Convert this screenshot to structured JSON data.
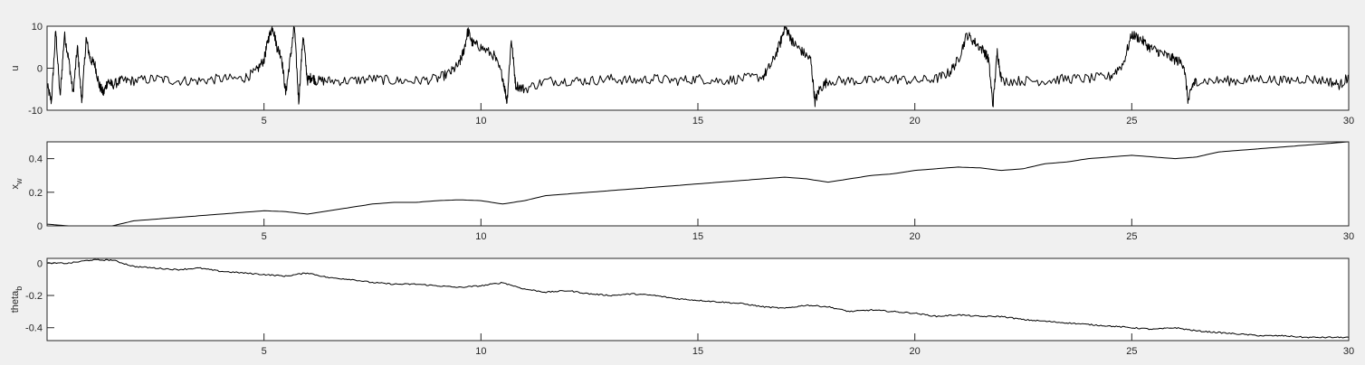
{
  "figure": {
    "background": "#f0f0f0",
    "axes_background": "#ffffff",
    "line_color": "#000000",
    "axis_color": "#262626"
  },
  "chart_data": [
    {
      "type": "line",
      "ylabel": "u",
      "ylabel_sub": "",
      "xlim": [
        0,
        30
      ],
      "ylim": [
        -10,
        10
      ],
      "xticks": [
        5,
        10,
        15,
        20,
        25,
        30
      ],
      "xtick_labels": [
        "5",
        "10",
        "15",
        "20",
        "25",
        "30"
      ],
      "yticks": [
        -10,
        0,
        10
      ],
      "ytick_labels": [
        "-10",
        "0",
        "10"
      ],
      "grid": false,
      "noise": 1.2,
      "series": [
        {
          "x": [
            0,
            0.1,
            0.2,
            0.3,
            0.4,
            0.5,
            0.6,
            0.7,
            0.8,
            0.9,
            1.0,
            1.1,
            1.2,
            1.3,
            1.4,
            1.5,
            1.7,
            2.0,
            2.5,
            3.0,
            3.5,
            4.0,
            4.5,
            4.8,
            5.0,
            5.1,
            5.2,
            5.3,
            5.4,
            5.5,
            5.6,
            5.7,
            5.8,
            5.9,
            6.0,
            6.1,
            6.2,
            6.5,
            7.0,
            7.5,
            8.0,
            8.5,
            9.0,
            9.3,
            9.5,
            9.6,
            9.7,
            9.8,
            10.0,
            10.3,
            10.5,
            10.6,
            10.7,
            10.8,
            11.0,
            11.5,
            12.0,
            12.5,
            13.0,
            13.5,
            14.0,
            14.5,
            15.0,
            15.5,
            16.0,
            16.5,
            16.7,
            16.9,
            17.0,
            17.1,
            17.2,
            17.4,
            17.6,
            17.7,
            17.8,
            18.0,
            18.5,
            19.0,
            19.5,
            20.0,
            20.5,
            20.8,
            21.0,
            21.2,
            21.4,
            21.6,
            21.7,
            21.8,
            21.9,
            22.0,
            22.5,
            23.0,
            23.5,
            24.0,
            24.5,
            24.8,
            25.0,
            25.2,
            25.4,
            25.6,
            25.8,
            26.0,
            26.2,
            26.3,
            26.4,
            26.5,
            27.0,
            27.5,
            28.0,
            28.5,
            29.0,
            29.5,
            29.8,
            30.0
          ],
          "y": [
            -4,
            -8,
            9,
            -7,
            8,
            2,
            -6,
            5,
            -8,
            7,
            2,
            1,
            -4,
            -6,
            -3,
            -4,
            -3,
            -3,
            -2.5,
            -3,
            -3,
            -2.5,
            -2.5,
            -1,
            2,
            7,
            10,
            5,
            3,
            -6,
            2,
            10,
            -8,
            8,
            -3,
            -2,
            -3,
            -3,
            -3,
            -2.5,
            -3,
            -3,
            -2.5,
            -1,
            1,
            4,
            9,
            6,
            5,
            3,
            -2,
            -8,
            7,
            -4,
            -5,
            -3,
            -3,
            -3,
            -2.5,
            -3,
            -2.5,
            -3,
            -2.5,
            -3,
            -2.5,
            -2,
            1,
            6,
            10,
            8,
            6,
            4,
            2,
            -8,
            -5,
            -3,
            -3,
            -3,
            -2.5,
            -3,
            -2.5,
            -1,
            2,
            8,
            6,
            4,
            2,
            -9,
            4,
            -3,
            -3,
            -3,
            -2.5,
            -2.5,
            -2,
            1,
            8,
            7,
            5,
            4,
            3,
            2,
            1,
            -8,
            -4,
            -3,
            -3,
            -3,
            -2.5,
            -3,
            -2.5,
            -3,
            -4,
            -2
          ]
        }
      ]
    },
    {
      "type": "line",
      "ylabel": "x",
      "ylabel_sub": "w",
      "xlim": [
        0,
        30
      ],
      "ylim": [
        0,
        0.5
      ],
      "xticks": [
        5,
        10,
        15,
        20,
        25,
        30
      ],
      "xtick_labels": [
        "5",
        "10",
        "15",
        "20",
        "25",
        "30"
      ],
      "yticks": [
        0,
        0.2,
        0.4
      ],
      "ytick_labels": [
        "0",
        "0.2",
        "0.4"
      ],
      "grid": false,
      "noise": 0,
      "series": [
        {
          "x": [
            0,
            0.5,
            1.0,
            1.5,
            2.0,
            2.5,
            3.0,
            3.5,
            4.0,
            4.5,
            5.0,
            5.5,
            6.0,
            6.5,
            7.0,
            7.5,
            8.0,
            8.5,
            9.0,
            9.5,
            10.0,
            10.5,
            11.0,
            11.5,
            12.0,
            12.5,
            13.0,
            13.5,
            14.0,
            14.5,
            15.0,
            15.5,
            16.0,
            16.5,
            17.0,
            17.5,
            18.0,
            18.5,
            19.0,
            19.5,
            20.0,
            20.5,
            21.0,
            21.5,
            22.0,
            22.5,
            23.0,
            23.5,
            24.0,
            24.5,
            25.0,
            25.5,
            26.0,
            26.5,
            27.0,
            27.5,
            28.0,
            28.5,
            29.0,
            29.5,
            30.0
          ],
          "y": [
            0.01,
            0.0,
            -0.01,
            0.0,
            0.03,
            0.04,
            0.05,
            0.06,
            0.07,
            0.08,
            0.09,
            0.085,
            0.07,
            0.09,
            0.11,
            0.13,
            0.14,
            0.14,
            0.15,
            0.155,
            0.15,
            0.13,
            0.15,
            0.18,
            0.19,
            0.2,
            0.21,
            0.22,
            0.23,
            0.24,
            0.25,
            0.26,
            0.27,
            0.28,
            0.29,
            0.28,
            0.26,
            0.28,
            0.3,
            0.31,
            0.33,
            0.34,
            0.35,
            0.345,
            0.33,
            0.34,
            0.37,
            0.38,
            0.4,
            0.41,
            0.42,
            0.41,
            0.4,
            0.41,
            0.44,
            0.45,
            0.46,
            0.47,
            0.48,
            0.49,
            0.5
          ]
        }
      ]
    },
    {
      "type": "line",
      "ylabel": "theta",
      "ylabel_sub": "b",
      "xlim": [
        0,
        30
      ],
      "ylim": [
        -0.48,
        0.03
      ],
      "xticks": [
        5,
        10,
        15,
        20,
        25,
        30
      ],
      "xtick_labels": [
        "5",
        "10",
        "15",
        "20",
        "25",
        "30"
      ],
      "yticks": [
        -0.4,
        -0.2,
        0
      ],
      "ytick_labels": [
        "-0.4",
        "-0.2",
        "0"
      ],
      "grid": false,
      "noise": 0.004,
      "series": [
        {
          "x": [
            0,
            0.5,
            1.0,
            1.5,
            2.0,
            2.5,
            3.0,
            3.5,
            4.0,
            4.5,
            5.0,
            5.5,
            6.0,
            6.5,
            7.0,
            7.5,
            8.0,
            8.5,
            9.0,
            9.5,
            10.0,
            10.5,
            11.0,
            11.5,
            12.0,
            12.5,
            13.0,
            13.5,
            14.0,
            14.5,
            15.0,
            15.5,
            16.0,
            16.5,
            17.0,
            17.5,
            18.0,
            18.5,
            19.0,
            19.5,
            20.0,
            20.5,
            21.0,
            21.5,
            22.0,
            22.5,
            23.0,
            23.5,
            24.0,
            24.5,
            25.0,
            25.5,
            26.0,
            26.5,
            27.0,
            27.5,
            28.0,
            28.5,
            29.0,
            29.5,
            30.0
          ],
          "y": [
            0.0,
            0.0,
            0.02,
            0.02,
            -0.02,
            -0.03,
            -0.04,
            -0.03,
            -0.05,
            -0.06,
            -0.07,
            -0.08,
            -0.06,
            -0.09,
            -0.1,
            -0.12,
            -0.13,
            -0.13,
            -0.14,
            -0.15,
            -0.14,
            -0.12,
            -0.16,
            -0.18,
            -0.17,
            -0.19,
            -0.2,
            -0.19,
            -0.2,
            -0.22,
            -0.23,
            -0.24,
            -0.25,
            -0.27,
            -0.28,
            -0.26,
            -0.27,
            -0.3,
            -0.29,
            -0.3,
            -0.31,
            -0.33,
            -0.32,
            -0.33,
            -0.33,
            -0.35,
            -0.36,
            -0.37,
            -0.38,
            -0.39,
            -0.4,
            -0.41,
            -0.4,
            -0.42,
            -0.43,
            -0.44,
            -0.45,
            -0.45,
            -0.46,
            -0.46,
            -0.46
          ]
        }
      ]
    }
  ]
}
